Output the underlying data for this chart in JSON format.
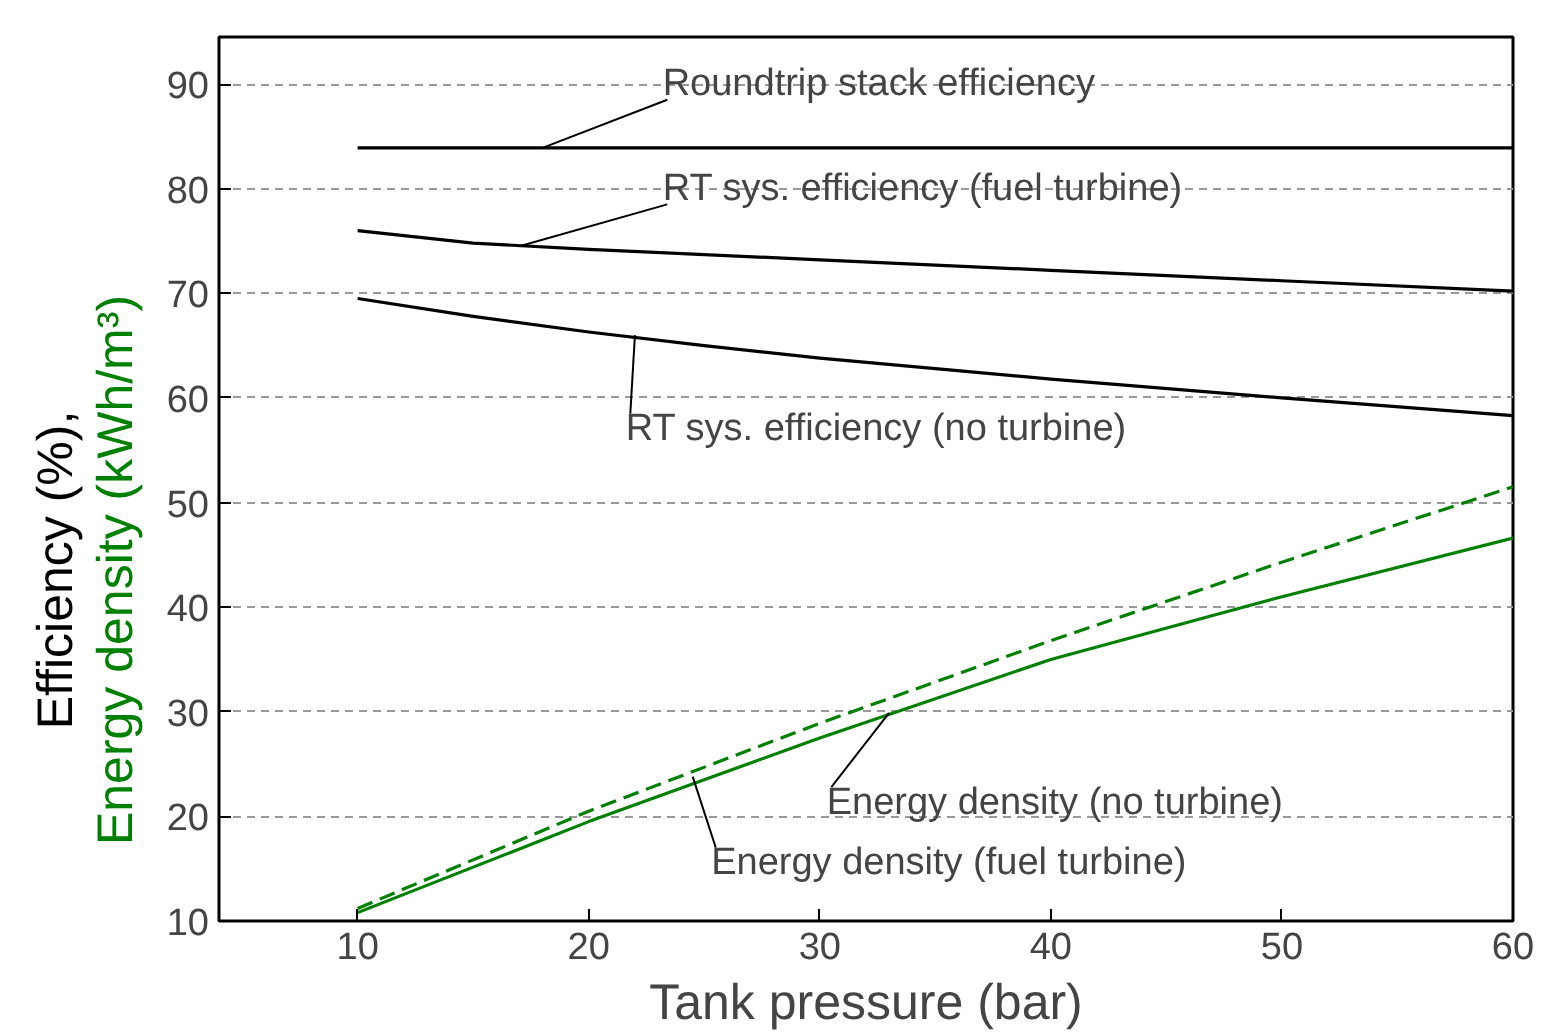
{
  "chart_data": {
    "type": "line",
    "xlabel": "Tank pressure (bar)",
    "ylabel": "Efficiency (%), Energy density (kWh/m³)",
    "xlim": [
      4,
      60
    ],
    "xticks": [
      10,
      20,
      30,
      40,
      50,
      60
    ],
    "ylim": [
      10,
      94.5
    ],
    "yticks": [
      10,
      20,
      30,
      40,
      50,
      60,
      70,
      80,
      90
    ],
    "grid": "y",
    "series": [
      {
        "color": "#000000",
        "line_style": "solid",
        "x": [
          10,
          20,
          30,
          40,
          50,
          60
        ],
        "values": [
          83.9,
          83.9,
          83.9,
          83.9,
          83.9,
          83.9
        ]
      },
      {
        "color": "#000000",
        "line_style": "solid",
        "x": [
          10,
          15,
          20,
          30,
          40,
          50,
          60
        ],
        "values": [
          76.0,
          74.8,
          74.2,
          73.2,
          72.2,
          71.2,
          70.2
        ]
      },
      {
        "color": "#000000",
        "line_style": "solid",
        "x": [
          10,
          15,
          20,
          25,
          30,
          40,
          50,
          60
        ],
        "values": [
          69.5,
          67.8,
          66.3,
          65.0,
          63.8,
          61.8,
          60.0,
          58.3
        ]
      },
      {
        "color": "#008000",
        "line_style": "dashed",
        "x": [
          10,
          20,
          30,
          40,
          50,
          60
        ],
        "values": [
          11.2,
          20.5,
          28.9,
          36.8,
          44.3,
          51.5
        ]
      },
      {
        "color": "#008000",
        "line_style": "solid",
        "x": [
          10,
          20,
          30,
          40,
          50,
          60
        ],
        "values": [
          10.8,
          19.5,
          27.5,
          35.0,
          41.0,
          46.6
        ]
      }
    ],
    "annotations": [
      {
        "text": "Roundtrip stack efficiency",
        "x": 18,
        "y": 83.9
      },
      {
        "text": "RT sys. efficiency (fuel turbine)",
        "x": 17,
        "y": 74.5
      },
      {
        "text": "RT sys. efficiency (no turbine)",
        "x": 22,
        "y": 66.0
      },
      {
        "text": "Energy density (no turbine)",
        "x": 33,
        "y": 29.9
      },
      {
        "text": "Energy density (fuel turbine)",
        "x": 24.5,
        "y": 23.8
      }
    ]
  }
}
